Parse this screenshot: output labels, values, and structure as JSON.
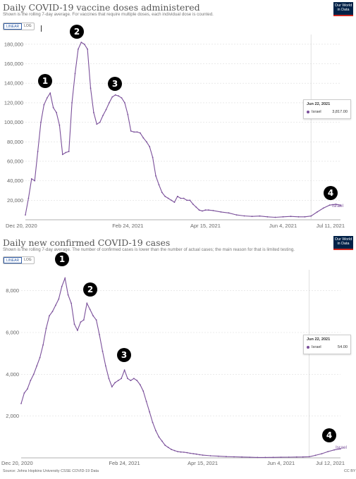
{
  "panels": [
    {
      "title": "Daily COVID-19 vaccine doses administered",
      "subtitle": "Shown is the rolling 7-day average. For vaccines that require multiple doses, each individual dose is counted.",
      "logo": [
        "Our World",
        "in Data"
      ],
      "toggle": [
        "LINEAR",
        "LOG"
      ],
      "tooltip": {
        "date": "Jun 22, 2021",
        "series": "Israel",
        "value": "3,817.00"
      },
      "series_label": "Israel",
      "badges": [
        "1",
        "2",
        "3",
        "4"
      ]
    },
    {
      "title": "Daily new confirmed COVID-19 cases",
      "subtitle": "Shown is the rolling 7-day average. The number of confirmed cases is lower than the number of actual cases; the main reason for that is limited testing.",
      "logo": [
        "Our World",
        "in Data"
      ],
      "toggle": [
        "LINEAR",
        "LOG"
      ],
      "tooltip": {
        "date": "Jun 22, 2021",
        "series": "Israel",
        "value": "54.00"
      },
      "series_label": "Israel",
      "badges": [
        "1",
        "2",
        "3",
        "4"
      ]
    }
  ],
  "footer": {
    "source": "Source: Johns Hopkins University CSSE COVID-19 Data",
    "license": "CC BY"
  },
  "colors": {
    "line": "#7a4f9a",
    "grid": "#dddddd",
    "badge": "#000000"
  },
  "chart_data": [
    {
      "type": "line",
      "title": "Daily COVID-19 vaccine doses administered",
      "xlabel": "",
      "ylabel": "",
      "ylim": [
        0,
        190000
      ],
      "xlim": [
        "2020-12-20",
        "2021-07-11"
      ],
      "yticks": [
        20000,
        40000,
        60000,
        80000,
        100000,
        120000,
        140000,
        160000,
        180000
      ],
      "ytick_labels": [
        "20,000",
        "40,000",
        "60,000",
        "80,000",
        "100,000",
        "120,000",
        "140,000",
        "160,000",
        "180,000"
      ],
      "xticks": [
        "2020-12-20",
        "2021-02-24",
        "2021-04-15",
        "2021-06-04",
        "2021-07-11"
      ],
      "xtick_labels": [
        "Dec 20, 2020",
        "Feb 24, 2021",
        "Apr 15, 2021",
        "Jun 4, 2021",
        "Jul 11, 2021"
      ],
      "grid": true,
      "series": [
        {
          "name": "Israel",
          "x": [
            "2020-12-20",
            "2020-12-22",
            "2020-12-24",
            "2020-12-26",
            "2020-12-28",
            "2020-12-30",
            "2021-01-01",
            "2021-01-03",
            "2021-01-05",
            "2021-01-07",
            "2021-01-09",
            "2021-01-11",
            "2021-01-13",
            "2021-01-15",
            "2021-01-17",
            "2021-01-19",
            "2021-01-21",
            "2021-01-23",
            "2021-01-25",
            "2021-01-27",
            "2021-01-29",
            "2021-01-31",
            "2021-02-02",
            "2021-02-04",
            "2021-02-06",
            "2021-02-08",
            "2021-02-10",
            "2021-02-12",
            "2021-02-14",
            "2021-02-16",
            "2021-02-18",
            "2021-02-20",
            "2021-02-22",
            "2021-02-24",
            "2021-02-26",
            "2021-02-28",
            "2021-03-02",
            "2021-03-04",
            "2021-03-06",
            "2021-03-08",
            "2021-03-10",
            "2021-03-12",
            "2021-03-14",
            "2021-03-16",
            "2021-03-18",
            "2021-03-20",
            "2021-03-22",
            "2021-03-24",
            "2021-03-26",
            "2021-03-28",
            "2021-03-30",
            "2021-04-01",
            "2021-04-03",
            "2021-04-05",
            "2021-04-07",
            "2021-04-09",
            "2021-04-11",
            "2021-04-13",
            "2021-04-15",
            "2021-04-17",
            "2021-04-20",
            "2021-04-25",
            "2021-04-30",
            "2021-05-05",
            "2021-05-10",
            "2021-05-15",
            "2021-05-20",
            "2021-05-25",
            "2021-05-30",
            "2021-06-04",
            "2021-06-09",
            "2021-06-14",
            "2021-06-18",
            "2021-06-22",
            "2021-06-26",
            "2021-06-30",
            "2021-07-04",
            "2021-07-08",
            "2021-07-11"
          ],
          "y": [
            5000,
            22000,
            42000,
            40000,
            70000,
            100000,
            118000,
            125000,
            130000,
            115000,
            110000,
            97000,
            67000,
            69000,
            70000,
            120000,
            150000,
            175000,
            182000,
            180000,
            175000,
            135000,
            110000,
            98000,
            100000,
            107000,
            113000,
            120000,
            126000,
            128000,
            127000,
            125000,
            120000,
            108000,
            91000,
            90000,
            90000,
            89000,
            84000,
            80000,
            75000,
            64000,
            45000,
            36000,
            28000,
            24000,
            22000,
            20000,
            18000,
            24000,
            22000,
            22000,
            20000,
            20000,
            16000,
            13000,
            10000,
            9000,
            10000,
            10000,
            9500,
            8000,
            7000,
            5000,
            4000,
            3500,
            3800,
            3000,
            2500,
            3000,
            3500,
            3000,
            3000,
            3817,
            8000,
            12000,
            15000,
            16000,
            15000
          ]
        }
      ]
    },
    {
      "type": "line",
      "title": "Daily new confirmed COVID-19 cases",
      "xlabel": "",
      "ylabel": "",
      "ylim": [
        0,
        9000
      ],
      "xlim": [
        "2020-12-20",
        "2021-07-12"
      ],
      "yticks": [
        2000,
        4000,
        6000,
        8000
      ],
      "ytick_labels": [
        "2,000",
        "4,000",
        "6,000",
        "8,000"
      ],
      "xticks": [
        "2020-12-20",
        "2021-02-24",
        "2021-04-15",
        "2021-06-04",
        "2021-07-12"
      ],
      "xtick_labels": [
        "Dec 20, 2020",
        "Feb 24, 2021",
        "Apr 15, 2021",
        "Jun 4, 2021",
        "Jul 12, 2021"
      ],
      "grid": true,
      "series": [
        {
          "name": "Israel",
          "x": [
            "2020-12-20",
            "2020-12-22",
            "2020-12-24",
            "2020-12-26",
            "2020-12-28",
            "2020-12-30",
            "2021-01-01",
            "2021-01-03",
            "2021-01-05",
            "2021-01-07",
            "2021-01-09",
            "2021-01-11",
            "2021-01-13",
            "2021-01-15",
            "2021-01-17",
            "2021-01-19",
            "2021-01-21",
            "2021-01-23",
            "2021-01-25",
            "2021-01-27",
            "2021-01-29",
            "2021-01-31",
            "2021-02-02",
            "2021-02-04",
            "2021-02-06",
            "2021-02-08",
            "2021-02-10",
            "2021-02-12",
            "2021-02-14",
            "2021-02-16",
            "2021-02-18",
            "2021-02-20",
            "2021-02-22",
            "2021-02-24",
            "2021-02-26",
            "2021-02-28",
            "2021-03-02",
            "2021-03-04",
            "2021-03-06",
            "2021-03-08",
            "2021-03-10",
            "2021-03-12",
            "2021-03-14",
            "2021-03-16",
            "2021-03-18",
            "2021-03-20",
            "2021-03-22",
            "2021-03-24",
            "2021-03-26",
            "2021-03-28",
            "2021-03-30",
            "2021-04-01",
            "2021-04-03",
            "2021-04-05",
            "2021-04-07",
            "2021-04-09",
            "2021-04-11",
            "2021-04-13",
            "2021-04-15",
            "2021-04-20",
            "2021-04-25",
            "2021-04-30",
            "2021-05-05",
            "2021-05-10",
            "2021-05-15",
            "2021-05-20",
            "2021-05-25",
            "2021-05-30",
            "2021-06-04",
            "2021-06-09",
            "2021-06-14",
            "2021-06-18",
            "2021-06-22",
            "2021-06-26",
            "2021-06-30",
            "2021-07-04",
            "2021-07-08",
            "2021-07-12"
          ],
          "y": [
            2600,
            3100,
            3300,
            3700,
            4000,
            4400,
            4800,
            5400,
            6200,
            6800,
            7000,
            7300,
            7600,
            8200,
            8600,
            7800,
            7400,
            6400,
            6100,
            6500,
            6600,
            7400,
            7100,
            6800,
            6600,
            5900,
            5100,
            4400,
            3800,
            3400,
            3600,
            3700,
            3800,
            4200,
            3800,
            3700,
            3800,
            3700,
            3500,
            3200,
            2700,
            2200,
            1700,
            1300,
            1000,
            800,
            600,
            500,
            400,
            350,
            300,
            280,
            270,
            250,
            220,
            200,
            180,
            150,
            130,
            100,
            80,
            60,
            50,
            40,
            30,
            20,
            20,
            25,
            30,
            35,
            40,
            45,
            54,
            120,
            200,
            300,
            380,
            430
          ]
        }
      ]
    }
  ]
}
